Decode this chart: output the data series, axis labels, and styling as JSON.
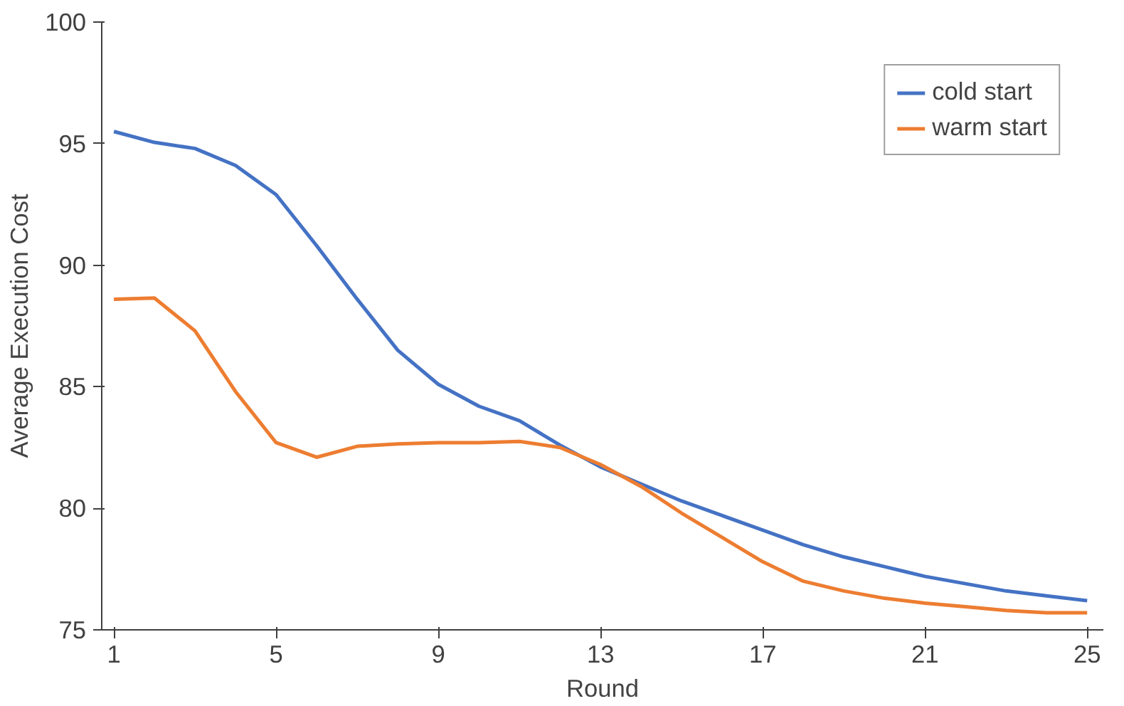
{
  "chart_data": {
    "type": "line",
    "xlabel": "Round",
    "ylabel": "Average Execution Cost",
    "x": [
      1,
      2,
      3,
      4,
      5,
      6,
      7,
      8,
      9,
      10,
      11,
      12,
      13,
      14,
      15,
      16,
      17,
      18,
      19,
      20,
      21,
      22,
      23,
      24,
      25
    ],
    "series": [
      {
        "name": "cold start",
        "color": "#4472c4",
        "values": [
          95.5,
          95.05,
          94.8,
          94.1,
          92.9,
          90.8,
          88.6,
          86.5,
          85.1,
          84.2,
          83.6,
          82.6,
          81.7,
          81.0,
          80.3,
          79.7,
          79.1,
          78.5,
          78.0,
          77.6,
          77.2,
          76.9,
          76.6,
          76.4,
          76.2
        ]
      },
      {
        "name": "warm start",
        "color": "#ed7d31",
        "values": [
          88.6,
          88.65,
          87.3,
          84.8,
          82.7,
          82.1,
          82.55,
          82.65,
          82.7,
          82.7,
          82.75,
          82.5,
          81.8,
          80.9,
          79.8,
          78.8,
          77.8,
          77.0,
          76.6,
          76.3,
          76.1,
          75.95,
          75.8,
          75.7,
          75.7
        ]
      }
    ],
    "xlim": [
      0.7,
      25.4
    ],
    "xticks": [
      1,
      5,
      9,
      13,
      17,
      21,
      25
    ],
    "ylim": [
      75,
      100
    ],
    "yticks": [
      75,
      80,
      85,
      90,
      95,
      100
    ],
    "grid": false,
    "legend": "top right",
    "line_style": "solid"
  }
}
